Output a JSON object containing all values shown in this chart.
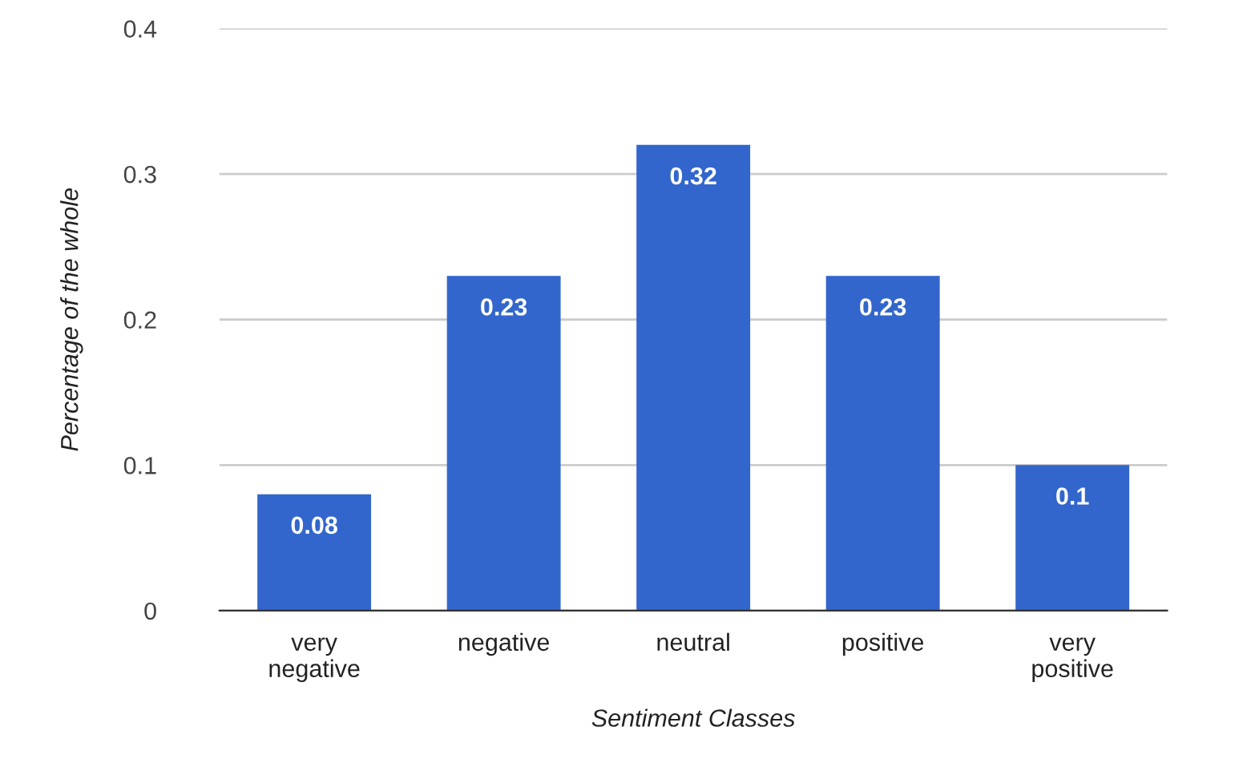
{
  "chart_data": {
    "type": "bar",
    "xlabel": "Sentiment Classes",
    "ylabel": "Percentage of the whole",
    "categories": [
      "very\nnegative",
      "negative",
      "neutral",
      "positive",
      "very\npositive"
    ],
    "values": [
      0.08,
      0.23,
      0.32,
      0.23,
      0.1
    ],
    "color": "#3366cc",
    "ylim": [
      0,
      0.4
    ],
    "yticks": [
      0,
      0.1,
      0.2,
      0.3,
      0.4
    ],
    "grid": "y",
    "data_labels": true
  }
}
